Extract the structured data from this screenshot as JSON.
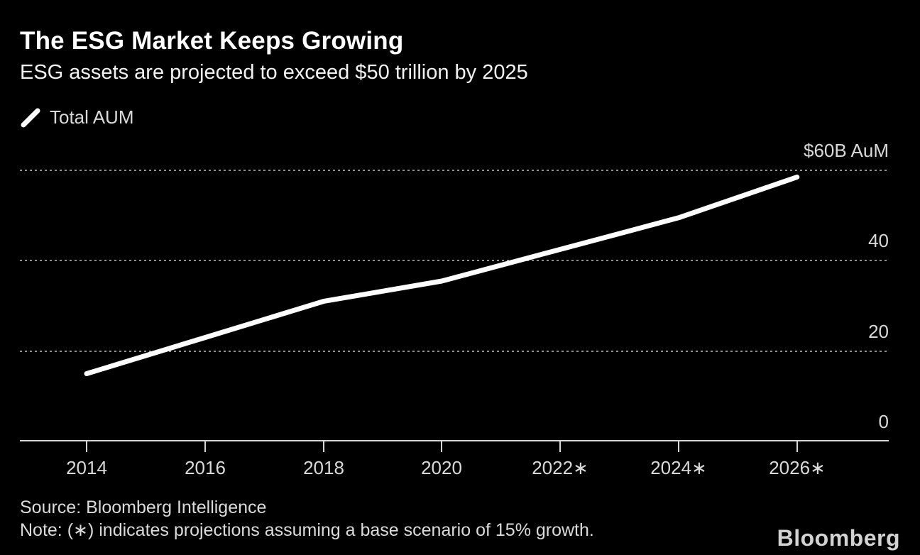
{
  "header": {
    "title": "The ESG Market Keeps Growing",
    "subtitle": "ESG assets are projected to exceed $50 trillion by 2025"
  },
  "legend": {
    "label": "Total AUM"
  },
  "chart_data": {
    "type": "line",
    "title": "The ESG Market Keeps Growing",
    "subtitle": "ESG assets are projected to exceed $50 trillion by 2025",
    "x": [
      2014,
      2016,
      2018,
      2020,
      2022,
      2024,
      2026
    ],
    "x_tick_labels": [
      "2014",
      "2016",
      "2018",
      "2020",
      "2022∗",
      "2024∗",
      "2026∗"
    ],
    "series": [
      {
        "name": "Total AUM",
        "values": [
          15,
          23,
          31,
          35.5,
          42.5,
          49.5,
          58.5
        ]
      }
    ],
    "y_ticks": [
      0,
      20,
      40,
      60
    ],
    "y_tick_labels": [
      "0",
      "20",
      "40",
      "$60B AuM"
    ],
    "y_axis_top_label": "$60B AuM",
    "ylim": [
      0,
      60
    ],
    "grid": "horizontal-dotted",
    "legend_position": "top-left",
    "projected_year_marker": "∗"
  },
  "footer": {
    "source": "Source: Bloomberg Intelligence",
    "note": "Note: (∗) indicates projections assuming a base scenario of 15% growth.",
    "logo": "Bloomberg"
  },
  "colors": {
    "background": "#000000",
    "title_text": "#ffffff",
    "subtitle_text": "#f2f2f2",
    "axis_text": "#d9d9d9",
    "footer_text": "#dbdbdb",
    "logo_text": "#d2d2d2",
    "series_line": "#ffffff",
    "gridline": "#8f8f8f",
    "axis_line": "#d6d6d6"
  }
}
